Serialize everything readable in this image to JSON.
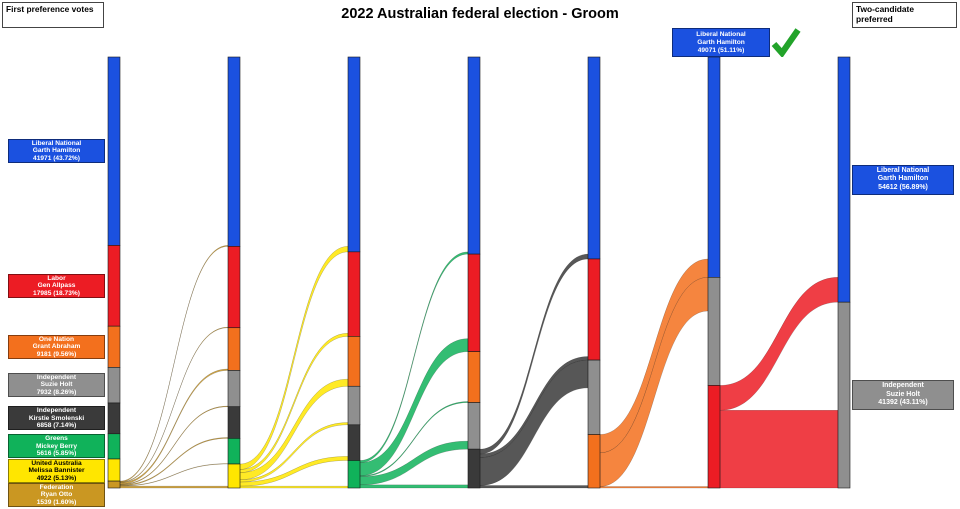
{
  "title": "2022 Australian federal election - Groom",
  "corner_boxes": {
    "left": "First preference votes",
    "right": "Two-candidate preferred"
  },
  "winner_annotation": {
    "party": "Liberal National",
    "name": "Garth Hamilton",
    "votes_label": "49071 (51.11%)",
    "bg": "#1b51e0",
    "check_color": "#22a32a"
  },
  "chart_data": {
    "type": "sankey",
    "candidates": [
      {
        "id": "lnp",
        "party": "Liberal National",
        "name": "Garth Hamilton",
        "color": "#1b51e0"
      },
      {
        "id": "alp",
        "party": "Labor",
        "name": "Gen Allpass",
        "color": "#ec1c24"
      },
      {
        "id": "on",
        "party": "One Nation",
        "name": "Grant Abraham",
        "color": "#f3701d"
      },
      {
        "id": "holt",
        "party": "Independent",
        "name": "Suzie Holt",
        "color": "#8f8f8f"
      },
      {
        "id": "smol",
        "party": "Independent",
        "name": "Kirstie Smolenski",
        "color": "#3a3a3a"
      },
      {
        "id": "grn",
        "party": "Greens",
        "name": "Mickey Berry",
        "color": "#10b25a"
      },
      {
        "id": "uap",
        "party": "United Australia",
        "name": "Melissa Bannister",
        "color": "#ffe600"
      },
      {
        "id": "fed",
        "party": "Federation",
        "name": "Ryan Otto",
        "color": "#ca9722"
      }
    ],
    "rounds": [
      [
        [
          "lnp",
          41971
        ],
        [
          "alp",
          17985
        ],
        [
          "on",
          9181
        ],
        [
          "holt",
          7932
        ],
        [
          "smol",
          6858
        ],
        [
          "grn",
          5616
        ],
        [
          "uap",
          4922
        ],
        [
          "fed",
          1539
        ]
      ],
      [
        [
          "lnp",
          42181
        ],
        [
          "alp",
          18125
        ],
        [
          "on",
          9511
        ],
        [
          "holt",
          8082
        ],
        [
          "smol",
          7048
        ],
        [
          "grn",
          5715
        ],
        [
          "uap",
          5342
        ]
      ],
      [
        [
          "lnp",
          43406
        ],
        [
          "alp",
          18825
        ],
        [
          "on",
          11111
        ],
        [
          "holt",
          8582
        ],
        [
          "smol",
          7948
        ],
        [
          "grn",
          6132
        ]
      ],
      [
        [
          "lnp",
          43906
        ],
        [
          "alp",
          21725
        ],
        [
          "on",
          11343
        ],
        [
          "holt",
          10382
        ],
        [
          "smol",
          8648
        ]
      ],
      [
        [
          "lnp",
          44985
        ],
        [
          "alp",
          22525
        ],
        [
          "holt",
          16582
        ],
        [
          "on",
          11912
        ]
      ],
      [
        [
          "lnp",
          49071
        ],
        [
          "holt",
          24082
        ],
        [
          "alp",
          22851
        ]
      ],
      [
        [
          "lnp",
          54612
        ],
        [
          "holt",
          41392
        ]
      ]
    ],
    "left_labels": [
      {
        "id": "lnp",
        "lines": [
          "Liberal National",
          "Garth Hamilton",
          "41971 (43.72%)"
        ],
        "bg": "#1b51e0",
        "fg": "#ffffff"
      },
      {
        "id": "alp",
        "lines": [
          "Labor",
          "Gen Allpass",
          "17985 (18.73%)"
        ],
        "bg": "#ec1c24",
        "fg": "#ffffff"
      },
      {
        "id": "on",
        "lines": [
          "One Nation",
          "Grant Abraham",
          "9181 (9.56%)"
        ],
        "bg": "#f3701d",
        "fg": "#ffffff"
      },
      {
        "id": "holt",
        "lines": [
          "Independent",
          "Suzie Holt",
          "7932 (8.26%)"
        ],
        "bg": "#8f8f8f",
        "fg": "#ffffff"
      },
      {
        "id": "smol",
        "lines": [
          "Independent",
          "Kirstie Smolenski",
          "6858 (7.14%)"
        ],
        "bg": "#3a3a3a",
        "fg": "#ffffff"
      },
      {
        "id": "grn",
        "lines": [
          "Greens",
          "Mickey Berry",
          "5616 (5.85%)"
        ],
        "bg": "#10b25a",
        "fg": "#ffffff"
      },
      {
        "id": "uap",
        "lines": [
          "United Australia",
          "Melissa Bannister",
          "4922 (5.13%)"
        ],
        "bg": "#ffe600",
        "fg": "#000000"
      },
      {
        "id": "fed",
        "lines": [
          "Federation",
          "Ryan Otto",
          "1539 (1.60%)"
        ],
        "bg": "#ca9722",
        "fg": "#ffffff"
      }
    ],
    "right_labels": [
      {
        "id": "lnp",
        "lines": [
          "Liberal National",
          "Garth Hamilton",
          "54612 (56.89%)"
        ],
        "bg": "#1b51e0",
        "fg": "#ffffff"
      },
      {
        "id": "holt",
        "lines": [
          "Independent",
          "Suzie Holt",
          "41392 (43.11%)"
        ],
        "bg": "#8f8f8f",
        "fg": "#ffffff"
      }
    ]
  }
}
